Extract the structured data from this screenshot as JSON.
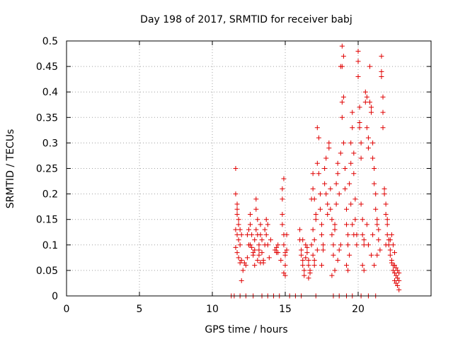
{
  "chart_data": {
    "type": "scatter",
    "title": "Day 198 of 2017, SRMTID for receiver babj",
    "xlabel": "GPS time / hours",
    "ylabel": "SRMTID / TECUs",
    "xlim": [
      0,
      25
    ],
    "ylim": [
      0,
      0.5
    ],
    "x_ticks": [
      {
        "value": 0,
        "label": "0"
      },
      {
        "value": 5,
        "label": "5"
      },
      {
        "value": 10,
        "label": "10"
      },
      {
        "value": 15,
        "label": "15"
      },
      {
        "value": 20,
        "label": "20"
      }
    ],
    "y_ticks": [
      {
        "value": 0,
        "label": "0"
      },
      {
        "value": 0.05,
        "label": "0.05"
      },
      {
        "value": 0.1,
        "label": "0.1"
      },
      {
        "value": 0.15,
        "label": "0.15"
      },
      {
        "value": 0.2,
        "label": "0.2"
      },
      {
        "value": 0.25,
        "label": "0.25"
      },
      {
        "value": 0.3,
        "label": "0.3"
      },
      {
        "value": 0.35,
        "label": "0.35"
      },
      {
        "value": 0.4,
        "label": "0.4"
      },
      {
        "value": 0.45,
        "label": "0.45"
      },
      {
        "value": 0.5,
        "label": "0.5"
      }
    ],
    "grid": true,
    "marker": "+",
    "color": "#e00000",
    "series": [
      {
        "name": "SRMTID",
        "points": [
          [
            11.3,
            0
          ],
          [
            11.5,
            0
          ],
          [
            11.9,
            0
          ],
          [
            12.3,
            0
          ],
          [
            12.8,
            0
          ],
          [
            13.4,
            0
          ],
          [
            13.8,
            0
          ],
          [
            14.2,
            0
          ],
          [
            14.6,
            0
          ],
          [
            15.3,
            0
          ],
          [
            15.7,
            0
          ],
          [
            16.1,
            0
          ],
          [
            17.1,
            0
          ],
          [
            18.3,
            0
          ],
          [
            18.7,
            0
          ],
          [
            19.2,
            0
          ],
          [
            19.6,
            0
          ],
          [
            20.2,
            0
          ],
          [
            20.7,
            0
          ],
          [
            21.2,
            0
          ],
          [
            11.6,
            0.25
          ],
          [
            11.6,
            0.2
          ],
          [
            11.7,
            0.18
          ],
          [
            11.7,
            0.16
          ],
          [
            11.8,
            0.15
          ],
          [
            11.8,
            0.14
          ],
          [
            11.6,
            0.13
          ],
          [
            11.7,
            0.12
          ],
          [
            11.8,
            0.11
          ],
          [
            11.9,
            0.1
          ],
          [
            11.6,
            0.095
          ],
          [
            11.7,
            0.085
          ],
          [
            11.8,
            0.075
          ],
          [
            11.9,
            0.065
          ],
          [
            12.0,
            0.07
          ],
          [
            12.1,
            0.05
          ],
          [
            12.0,
            0.03
          ],
          [
            11.7,
            0.17
          ],
          [
            11.9,
            0.13
          ],
          [
            12.0,
            0.12
          ],
          [
            12.2,
            0.065
          ],
          [
            12.3,
            0.06
          ],
          [
            12.4,
            0.075
          ],
          [
            12.5,
            0.1
          ],
          [
            12.5,
            0.13
          ],
          [
            12.6,
            0.14
          ],
          [
            12.6,
            0.16
          ],
          [
            12.7,
            0.12
          ],
          [
            12.7,
            0.095
          ],
          [
            12.8,
            0.085
          ],
          [
            12.8,
            0.08
          ],
          [
            12.9,
            0.09
          ],
          [
            12.9,
            0.11
          ],
          [
            13.0,
            0.13
          ],
          [
            13.0,
            0.17
          ],
          [
            13.0,
            0.19
          ],
          [
            13.1,
            0.15
          ],
          [
            13.1,
            0.12
          ],
          [
            13.2,
            0.1
          ],
          [
            13.2,
            0.09
          ],
          [
            13.3,
            0.12
          ],
          [
            13.3,
            0.14
          ],
          [
            13.4,
            0.11
          ],
          [
            13.4,
            0.085
          ],
          [
            13.5,
            0.07
          ],
          [
            13.5,
            0.065
          ],
          [
            13.6,
            0.1
          ],
          [
            13.6,
            0.13
          ],
          [
            13.7,
            0.12
          ],
          [
            13.7,
            0.15
          ],
          [
            13.8,
            0.14
          ],
          [
            13.8,
            0.1
          ],
          [
            13.9,
            0.075
          ],
          [
            14.0,
            0.11
          ],
          [
            13.2,
            0.08
          ],
          [
            13.1,
            0.07
          ],
          [
            12.6,
            0.1
          ],
          [
            12.4,
            0.12
          ],
          [
            13.3,
            0.065
          ],
          [
            12.9,
            0.06
          ],
          [
            14.3,
            0.09
          ],
          [
            14.4,
            0.085
          ],
          [
            14.4,
            0.095
          ],
          [
            14.5,
            0.1
          ],
          [
            14.5,
            0.085
          ],
          [
            14.8,
            0.21
          ],
          [
            14.8,
            0.19
          ],
          [
            14.9,
            0.23
          ],
          [
            14.8,
            0.16
          ],
          [
            14.9,
            0.12
          ],
          [
            14.9,
            0.1
          ],
          [
            15.0,
            0.085
          ],
          [
            15.0,
            0.08
          ],
          [
            15.0,
            0.06
          ],
          [
            14.9,
            0.045
          ],
          [
            15.0,
            0.04
          ],
          [
            15.1,
            0.12
          ],
          [
            14.8,
            0.14
          ],
          [
            15.1,
            0.09
          ],
          [
            14.7,
            0.07
          ],
          [
            16.0,
            0.13
          ],
          [
            16.0,
            0.11
          ],
          [
            16.1,
            0.09
          ],
          [
            16.1,
            0.08
          ],
          [
            16.2,
            0.07
          ],
          [
            16.2,
            0.06
          ],
          [
            16.3,
            0.05
          ],
          [
            16.3,
            0.04
          ],
          [
            16.4,
            0.1
          ],
          [
            16.5,
            0.095
          ],
          [
            16.5,
            0.085
          ],
          [
            16.6,
            0.07
          ],
          [
            16.6,
            0.06
          ],
          [
            16.7,
            0.05
          ],
          [
            16.7,
            0.045
          ],
          [
            16.8,
            0.1
          ],
          [
            16.9,
            0.13
          ],
          [
            16.9,
            0.08
          ],
          [
            17.0,
            0.07
          ],
          [
            17.0,
            0.06
          ],
          [
            16.8,
            0.19
          ],
          [
            16.9,
            0.21
          ],
          [
            16.9,
            0.24
          ],
          [
            17.0,
            0.19
          ],
          [
            17.1,
            0.16
          ],
          [
            17.1,
            0.15
          ],
          [
            17.2,
            0.26
          ],
          [
            17.2,
            0.33
          ],
          [
            17.3,
            0.31
          ],
          [
            17.3,
            0.24
          ],
          [
            17.4,
            0.2
          ],
          [
            17.4,
            0.17
          ],
          [
            17.5,
            0.14
          ],
          [
            17.5,
            0.12
          ],
          [
            17.6,
            0.1
          ],
          [
            17.6,
            0.09
          ],
          [
            17.7,
            0.22
          ],
          [
            17.7,
            0.25
          ],
          [
            17.8,
            0.27
          ],
          [
            17.8,
            0.2
          ],
          [
            17.9,
            0.18
          ],
          [
            17.9,
            0.16
          ],
          [
            18.0,
            0.29
          ],
          [
            18.0,
            0.3
          ],
          [
            18.1,
            0.21
          ],
          [
            18.1,
            0.17
          ],
          [
            18.2,
            0.15
          ],
          [
            18.2,
            0.12
          ],
          [
            18.3,
            0.1
          ],
          [
            18.3,
            0.08
          ],
          [
            18.4,
            0.13
          ],
          [
            18.4,
            0.14
          ],
          [
            18.5,
            0.18
          ],
          [
            18.5,
            0.22
          ],
          [
            18.6,
            0.24
          ],
          [
            18.6,
            0.26
          ],
          [
            18.7,
            0.2
          ],
          [
            18.7,
            0.09
          ],
          [
            18.6,
            0.07
          ],
          [
            18.8,
            0.1
          ],
          [
            18.8,
            0.28
          ],
          [
            18.9,
            0.35
          ],
          [
            18.9,
            0.38
          ],
          [
            19.0,
            0.39
          ],
          [
            18.9,
            0.45
          ],
          [
            19.0,
            0.47
          ],
          [
            18.9,
            0.49
          ],
          [
            18.8,
            0.45
          ],
          [
            19.0,
            0.3
          ],
          [
            19.1,
            0.25
          ],
          [
            19.1,
            0.21
          ],
          [
            19.2,
            0.17
          ],
          [
            19.2,
            0.14
          ],
          [
            19.3,
            0.12
          ],
          [
            19.3,
            0.1
          ],
          [
            19.4,
            0.08
          ],
          [
            19.4,
            0.22
          ],
          [
            19.5,
            0.26
          ],
          [
            19.5,
            0.3
          ],
          [
            19.6,
            0.33
          ],
          [
            19.6,
            0.36
          ],
          [
            19.7,
            0.28
          ],
          [
            19.7,
            0.24
          ],
          [
            19.8,
            0.19
          ],
          [
            19.8,
            0.15
          ],
          [
            19.9,
            0.12
          ],
          [
            19.9,
            0.1
          ],
          [
            20.0,
            0.48
          ],
          [
            20.0,
            0.46
          ],
          [
            20.0,
            0.43
          ],
          [
            20.1,
            0.37
          ],
          [
            20.1,
            0.34
          ],
          [
            20.1,
            0.33
          ],
          [
            20.2,
            0.3
          ],
          [
            20.2,
            0.27
          ],
          [
            20.2,
            0.18
          ],
          [
            20.3,
            0.15
          ],
          [
            20.3,
            0.12
          ],
          [
            20.4,
            0.11
          ],
          [
            20.4,
            0.1
          ],
          [
            20.5,
            0.4
          ],
          [
            20.5,
            0.38
          ],
          [
            20.6,
            0.39
          ],
          [
            20.6,
            0.33
          ],
          [
            20.7,
            0.31
          ],
          [
            20.7,
            0.29
          ],
          [
            20.8,
            0.45
          ],
          [
            20.8,
            0.38
          ],
          [
            20.9,
            0.37
          ],
          [
            20.9,
            0.36
          ],
          [
            21.0,
            0.3
          ],
          [
            21.0,
            0.27
          ],
          [
            21.1,
            0.25
          ],
          [
            21.1,
            0.22
          ],
          [
            21.2,
            0.2
          ],
          [
            21.2,
            0.17
          ],
          [
            21.3,
            0.15
          ],
          [
            21.3,
            0.14
          ],
          [
            21.4,
            0.13
          ],
          [
            21.4,
            0.11
          ],
          [
            21.6,
            0.47
          ],
          [
            21.6,
            0.44
          ],
          [
            21.6,
            0.43
          ],
          [
            21.7,
            0.39
          ],
          [
            21.7,
            0.36
          ],
          [
            21.7,
            0.33
          ],
          [
            21.8,
            0.21
          ],
          [
            21.8,
            0.2
          ],
          [
            21.9,
            0.18
          ],
          [
            21.9,
            0.16
          ],
          [
            22.0,
            0.14
          ],
          [
            22.0,
            0.12
          ],
          [
            22.1,
            0.11
          ],
          [
            22.1,
            0.1
          ],
          [
            22.2,
            0.09
          ],
          [
            22.2,
            0.08
          ],
          [
            22.3,
            0.07
          ],
          [
            22.3,
            0.065
          ],
          [
            22.4,
            0.06
          ],
          [
            22.4,
            0.05
          ],
          [
            22.5,
            0.06
          ],
          [
            22.5,
            0.045
          ],
          [
            22.5,
            0.03
          ],
          [
            22.6,
            0.04
          ],
          [
            22.6,
            0.025
          ],
          [
            22.6,
            0.055
          ],
          [
            22.7,
            0.035
          ],
          [
            22.7,
            0.05
          ],
          [
            22.7,
            0.02
          ],
          [
            22.8,
            0.03
          ],
          [
            22.8,
            0.045
          ],
          [
            22.8,
            0.012
          ],
          [
            22.5,
            0.085
          ],
          [
            22.4,
            0.1
          ],
          [
            22.3,
            0.12
          ],
          [
            22.2,
            0.11
          ],
          [
            22.0,
            0.15
          ],
          [
            21.9,
            0.1
          ],
          [
            21.5,
            0.09
          ],
          [
            21.3,
            0.08
          ],
          [
            19.5,
            0.18
          ],
          [
            19.6,
            0.14
          ],
          [
            19.7,
            0.12
          ],
          [
            19.2,
            0.06
          ],
          [
            19.3,
            0.05
          ],
          [
            20.3,
            0.06
          ],
          [
            20.4,
            0.05
          ],
          [
            20.6,
            0.14
          ],
          [
            20.7,
            0.1
          ],
          [
            20.9,
            0.08
          ],
          [
            21.0,
            0.12
          ],
          [
            21.1,
            0.06
          ],
          [
            18.4,
            0.05
          ],
          [
            18.2,
            0.04
          ],
          [
            17.5,
            0.06
          ],
          [
            17.2,
            0.09
          ],
          [
            17.0,
            0.11
          ],
          [
            16.2,
            0.11
          ],
          [
            16.4,
            0.075
          ],
          [
            16.6,
            0.035
          ]
        ]
      }
    ]
  }
}
